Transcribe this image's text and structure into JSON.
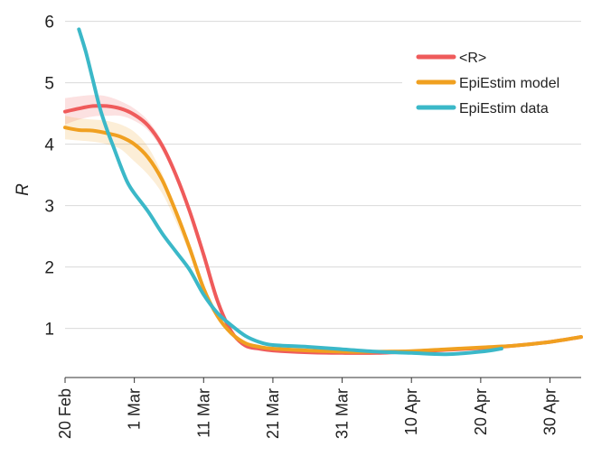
{
  "chart_data": {
    "type": "line",
    "ylabel": "R",
    "xlabel": "",
    "ylim": [
      0.2,
      6.2
    ],
    "yticks": [
      1,
      2,
      3,
      4,
      5,
      6
    ],
    "xlim": [
      0,
      74.5
    ],
    "xtick_positions": [
      0,
      10,
      20,
      30,
      40,
      50,
      60,
      70
    ],
    "xtick_labels": [
      "20 Feb",
      "1 Mar",
      "11 Mar",
      "21 Mar",
      "31 Mar",
      "10 Apr",
      "20 Apr",
      "30 Apr"
    ],
    "grid": "horizontal",
    "legend_position": "top-right",
    "series": [
      {
        "name": "<R>",
        "color": "#ef5b5b",
        "x": [
          0,
          2,
          4,
          6,
          8,
          10,
          12,
          14,
          16,
          18,
          20,
          22,
          24,
          26,
          28,
          30,
          35,
          40,
          45,
          50,
          55,
          60,
          65,
          70,
          74.5
        ],
        "y": [
          4.53,
          4.58,
          4.62,
          4.62,
          4.58,
          4.48,
          4.3,
          3.98,
          3.5,
          2.9,
          2.2,
          1.45,
          0.95,
          0.72,
          0.67,
          0.64,
          0.61,
          0.6,
          0.6,
          0.62,
          0.65,
          0.68,
          0.72,
          0.78,
          0.86
        ],
        "band_upper": [
          4.75,
          4.78,
          4.8,
          4.78,
          4.7,
          4.58,
          4.38,
          4.05,
          3.56,
          2.95,
          2.25,
          1.5,
          0.98,
          0.75,
          0.69,
          0.66,
          0.63,
          0.62,
          0.62,
          0.64,
          0.67,
          0.7,
          0.74,
          0.8,
          0.88
        ],
        "band_lower": [
          4.32,
          4.4,
          4.45,
          4.46,
          4.46,
          4.38,
          4.22,
          3.9,
          3.44,
          2.85,
          2.15,
          1.4,
          0.92,
          0.7,
          0.65,
          0.62,
          0.59,
          0.58,
          0.58,
          0.6,
          0.63,
          0.66,
          0.7,
          0.76,
          0.84
        ]
      },
      {
        "name": "EpiEstim model",
        "color": "#f0a020",
        "x": [
          0,
          2,
          4,
          6,
          8,
          10,
          12,
          14,
          16,
          18,
          20,
          22,
          24,
          26,
          28,
          30,
          35,
          40,
          45,
          50,
          55,
          60,
          65,
          70,
          74.5
        ],
        "y": [
          4.27,
          4.23,
          4.22,
          4.18,
          4.12,
          4.0,
          3.78,
          3.42,
          2.9,
          2.3,
          1.65,
          1.2,
          0.92,
          0.76,
          0.7,
          0.67,
          0.64,
          0.62,
          0.62,
          0.63,
          0.66,
          0.69,
          0.72,
          0.78,
          0.86
        ],
        "band_upper": [
          4.46,
          4.42,
          4.4,
          4.38,
          4.32,
          4.2,
          3.95,
          3.52,
          2.96,
          2.34,
          1.68,
          1.22,
          0.94,
          0.78,
          0.72,
          0.69,
          0.66,
          0.64,
          0.64,
          0.65,
          0.68,
          0.71,
          0.74,
          0.8,
          0.88
        ],
        "band_lower": [
          4.08,
          4.06,
          4.04,
          4.0,
          3.92,
          3.72,
          3.5,
          3.2,
          2.74,
          2.2,
          1.6,
          1.17,
          0.9,
          0.74,
          0.68,
          0.65,
          0.62,
          0.6,
          0.6,
          0.61,
          0.64,
          0.67,
          0.7,
          0.76,
          0.84
        ]
      },
      {
        "name": "EpiEstim data",
        "color": "#3bb8c8",
        "x": [
          2,
          3,
          4,
          5,
          6,
          7,
          8,
          9,
          10,
          12,
          14,
          16,
          18,
          20,
          22,
          24,
          26,
          28,
          30,
          35,
          40,
          45,
          50,
          55,
          60,
          63
        ],
        "y": [
          5.87,
          5.5,
          5.05,
          4.6,
          4.25,
          3.95,
          3.65,
          3.38,
          3.2,
          2.9,
          2.55,
          2.25,
          1.95,
          1.55,
          1.25,
          1.05,
          0.88,
          0.78,
          0.73,
          0.7,
          0.66,
          0.62,
          0.6,
          0.58,
          0.62,
          0.67
        ]
      }
    ]
  }
}
